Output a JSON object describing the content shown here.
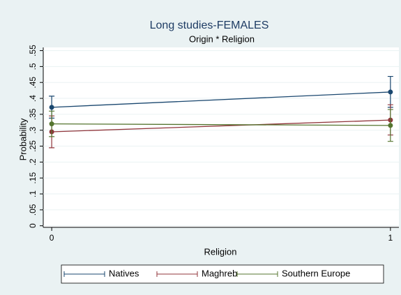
{
  "chart_data": {
    "type": "line",
    "title": "Long studies-FEMALES",
    "subtitle": "Origin * Religion",
    "x_label": "Religion",
    "y_label": "Probability",
    "x": [
      0,
      1
    ],
    "xlim": [
      -0.025,
      1.025
    ],
    "xticks": [
      0,
      1
    ],
    "ylim": [
      -0.005,
      0.56
    ],
    "yticks": [
      0,
      {
        "value": 0.05,
        "label": ".05"
      },
      {
        "value": 0.1,
        "label": ".1"
      },
      {
        "value": 0.15,
        "label": ".15"
      },
      {
        "value": 0.2,
        "label": ".2"
      },
      {
        "value": 0.25,
        "label": ".25"
      },
      {
        "value": 0.3,
        "label": ".3"
      },
      {
        "value": 0.35,
        "label": ".35"
      },
      {
        "value": 0.4,
        "label": ".4"
      },
      {
        "value": 0.45,
        "label": ".45"
      },
      {
        "value": 0.5,
        "label": ".5"
      },
      {
        "value": 0.55,
        "label": ".55"
      }
    ],
    "grid": true,
    "legend": "bottom",
    "series": [
      {
        "name": "Natives",
        "color": "#1a476f",
        "values": [
          0.372,
          0.42
        ],
        "lower": [
          0.338,
          0.372
        ],
        "upper": [
          0.407,
          0.469
        ]
      },
      {
        "name": "Maghreb",
        "color": "#90353b",
        "values": [
          0.295,
          0.332
        ],
        "lower": [
          0.245,
          0.285
        ],
        "upper": [
          0.345,
          0.38
        ]
      },
      {
        "name": "Southern Europe",
        "color": "#55752f",
        "values": [
          0.32,
          0.315
        ],
        "lower": [
          0.28,
          0.265
        ],
        "upper": [
          0.36,
          0.365
        ]
      }
    ]
  }
}
